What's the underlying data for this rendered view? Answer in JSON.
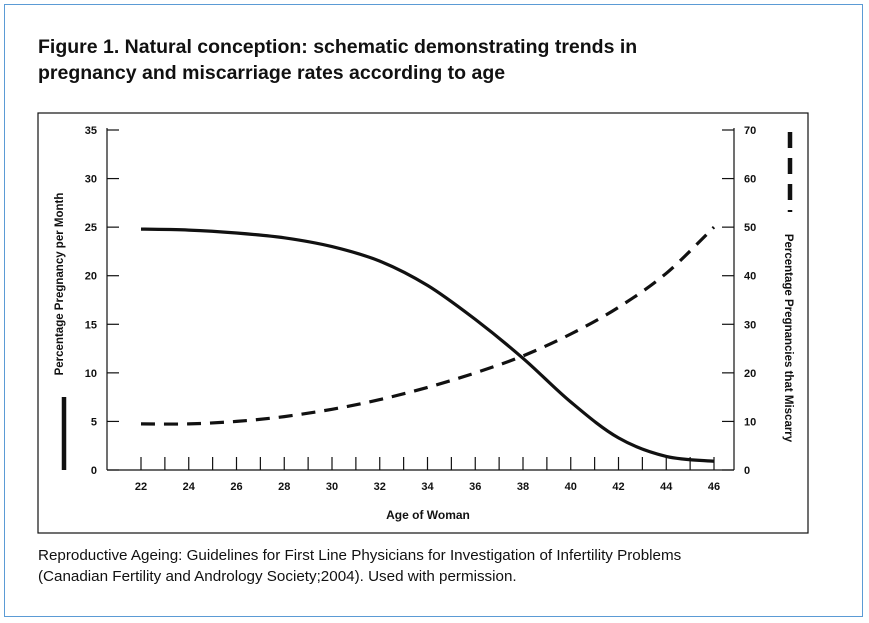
{
  "figure": {
    "title_line1": "Figure 1. Natural conception: schematic demonstrating trends in",
    "title_line2": "pregnancy and miscarriage rates according to age",
    "caption_line1": "Reproductive Ageing: Guidelines for First Line Physicians for Investigation of Infertility Problems",
    "caption_line2": "(Canadian Fertility and Andrology Society;2004). Used with permission."
  },
  "colors": {
    "frame_border": "#5b9bd5",
    "ink": "#111111"
  },
  "chart_data": {
    "type": "line",
    "title": "",
    "xlabel": "Age of Woman",
    "ylabel_left": "Percentage Pregnancy per Month",
    "ylabel_right": "Percentage Pregnancies that Miscarry",
    "x_ticks": [
      22,
      24,
      26,
      28,
      30,
      32,
      34,
      36,
      38,
      40,
      42,
      44,
      46
    ],
    "xlim": [
      22,
      46
    ],
    "ylim_left": [
      0,
      35
    ],
    "ylim_right": [
      0,
      70
    ],
    "y_ticks_left": [
      0,
      5,
      10,
      15,
      20,
      25,
      30,
      35
    ],
    "y_ticks_right": [
      0,
      10,
      20,
      30,
      40,
      50,
      60,
      70
    ],
    "legend": "line style keys beside each y-axis label (solid = left axis, dashed = right axis)",
    "grid": false,
    "series": [
      {
        "axis": "left",
        "style": "solid",
        "x": [
          22,
          24,
          26,
          28,
          30,
          32,
          34,
          36,
          38,
          40,
          42,
          44,
          46
        ],
        "values": [
          24.8,
          24.7,
          24.4,
          23.9,
          23.0,
          21.5,
          19.0,
          15.5,
          11.5,
          7.0,
          3.3,
          1.4,
          0.9
        ]
      },
      {
        "axis": "right",
        "style": "dashed",
        "x": [
          22,
          24,
          26,
          28,
          30,
          32,
          34,
          36,
          38,
          40,
          42,
          44,
          46
        ],
        "values": [
          9.5,
          9.5,
          10.0,
          11.0,
          12.5,
          14.5,
          17.0,
          20.0,
          23.5,
          28.0,
          33.5,
          40.5,
          50.0
        ]
      }
    ]
  }
}
